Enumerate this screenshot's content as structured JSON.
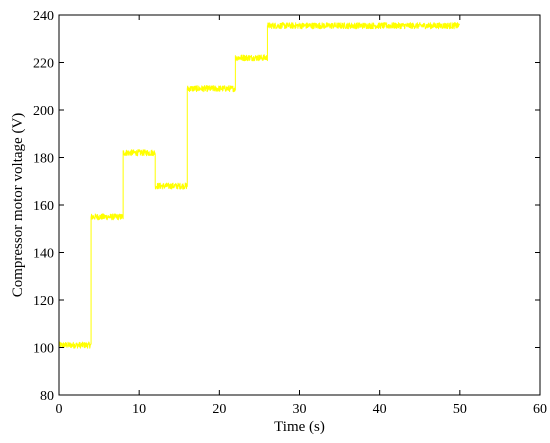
{
  "chart_data": {
    "type": "line",
    "title": "",
    "xlabel": "Time (s)",
    "ylabel": "Compressor motor voltage (V)",
    "xlim": [
      0,
      60
    ],
    "ylim": [
      80,
      240
    ],
    "xticks": [
      0,
      10,
      20,
      30,
      40,
      50,
      60
    ],
    "yticks": [
      80,
      100,
      120,
      140,
      160,
      180,
      200,
      220,
      240
    ],
    "grid": false,
    "legend": "none",
    "series": [
      {
        "color": "#ffff00",
        "x": [
          0,
          4,
          4,
          8,
          8,
          12,
          12,
          16,
          16,
          22,
          22,
          26,
          26,
          50
        ],
        "y": [
          101,
          101,
          155,
          155,
          182,
          182,
          168,
          168,
          209,
          209,
          222,
          222,
          235.5,
          235.5
        ],
        "noise_amplitude": 1.3
      }
    ]
  }
}
